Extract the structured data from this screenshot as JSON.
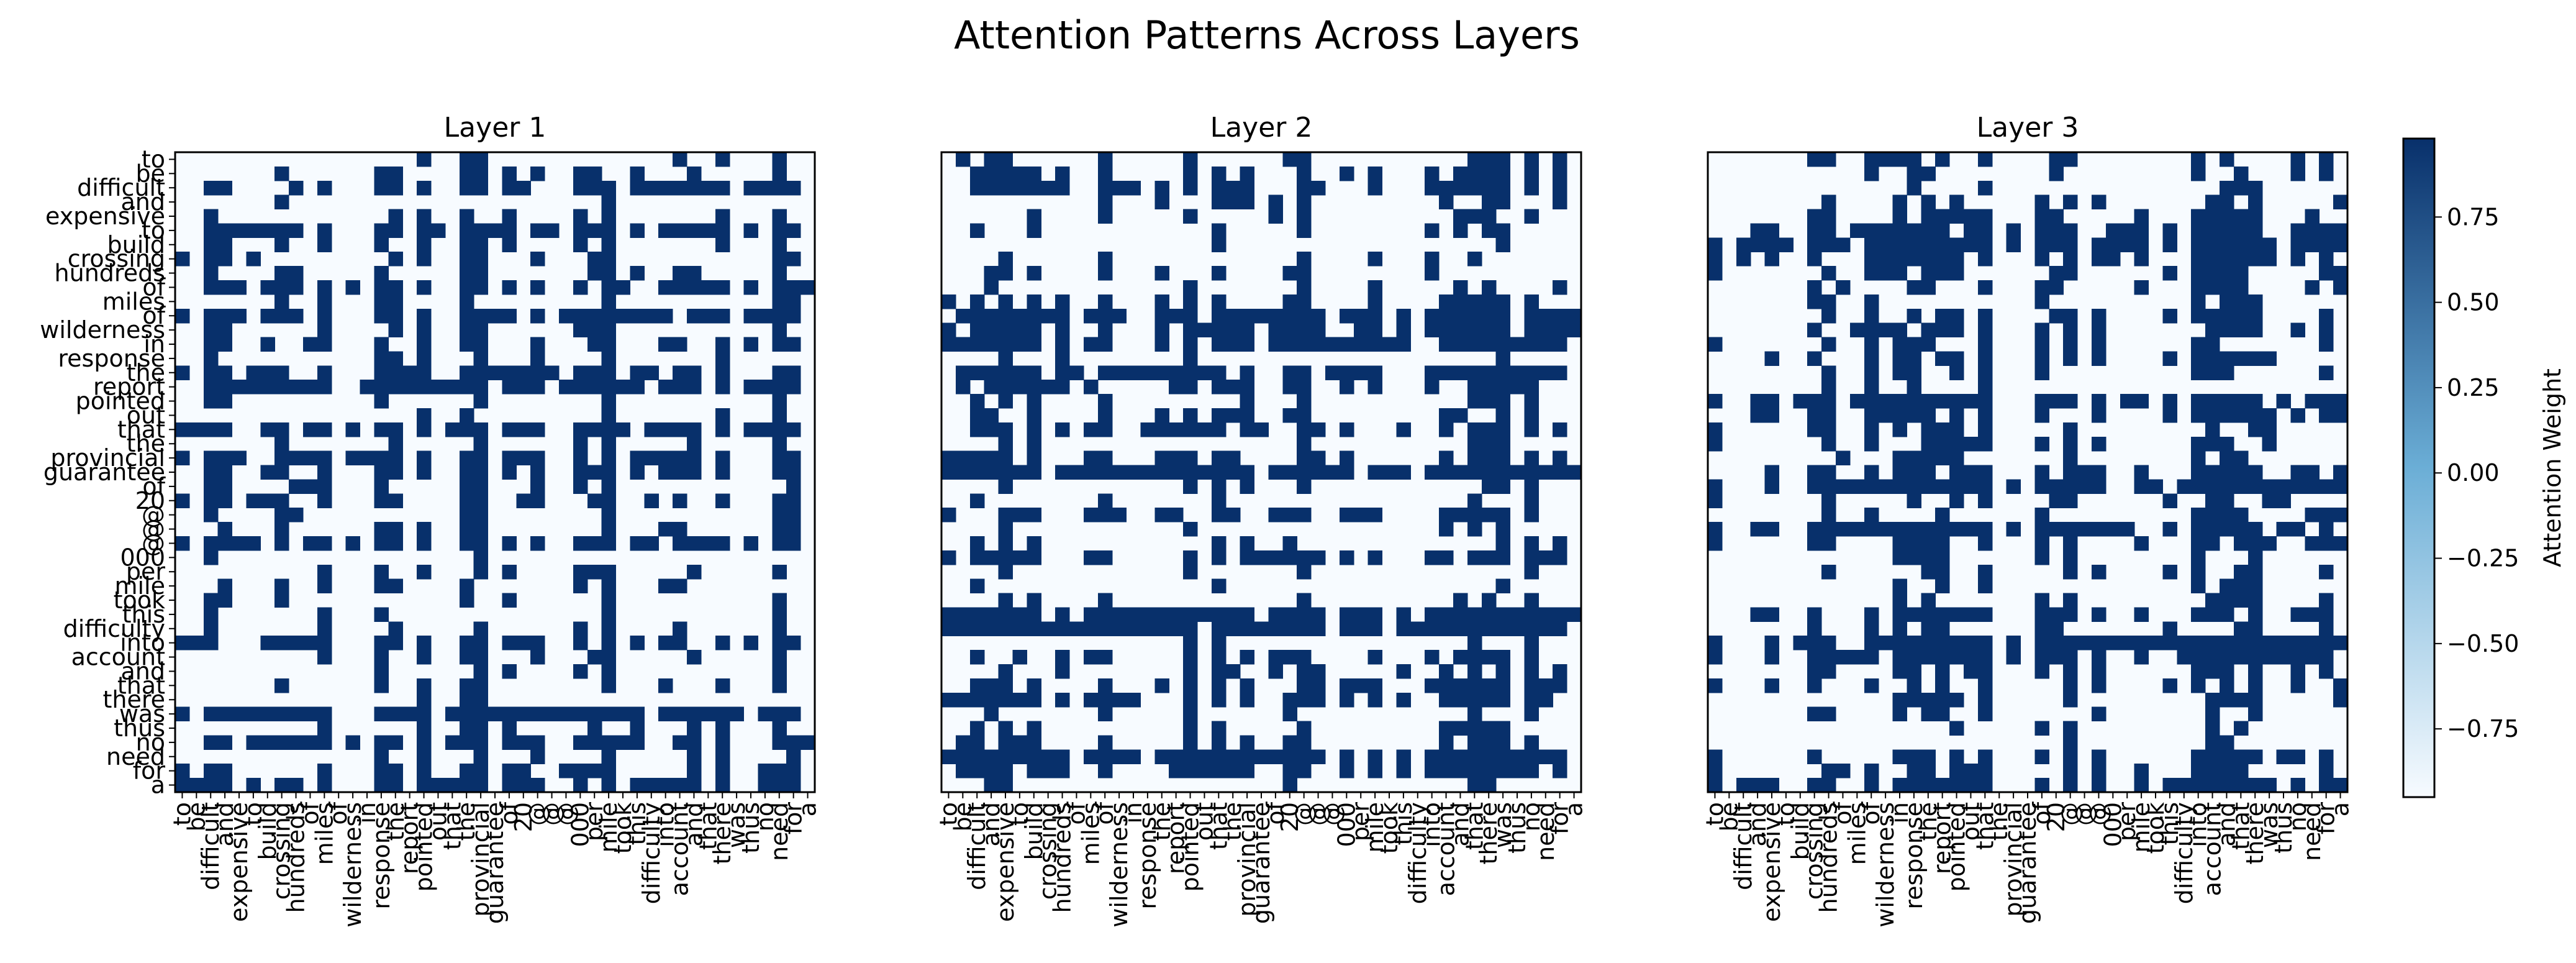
{
  "figure": {
    "title": "Attention Patterns Across Layers"
  },
  "colors": {
    "low": "#f7fbff",
    "high": "#08306b",
    "frame": "#000000"
  },
  "chart_data": {
    "type": "heatmap",
    "colormap": "Blues",
    "tokens": [
      "to",
      "be",
      "difficult",
      "and",
      "expensive",
      "to",
      "build",
      "crossing",
      "hundreds",
      "of",
      "miles",
      "of",
      "wilderness",
      "in",
      "response",
      "the",
      "report",
      "pointed",
      "out",
      "that",
      "the",
      "provincial",
      "guarantee",
      "of",
      "20",
      "@",
      "@",
      "@",
      "000",
      "per",
      "mile",
      "took",
      "this",
      "difficulty",
      "into",
      "account",
      "and",
      "that",
      "there",
      "was",
      "thus",
      "no",
      "need",
      "for",
      "a"
    ],
    "panels": [
      {
        "title": "Layer 1",
        "seed": 11
      },
      {
        "title": "Layer 2",
        "seed": 23
      },
      {
        "title": "Layer 3",
        "seed": 37
      }
    ],
    "colorbar": {
      "label": "Attention Weight",
      "range": [
        -0.95,
        0.98
      ],
      "ticks": [
        0.75,
        0.5,
        0.25,
        0.0,
        -0.25,
        -0.5,
        -0.75
      ],
      "tick_labels": [
        "0.75",
        "0.50",
        "0.25",
        "0.00",
        "−0.25",
        "−0.50",
        "−0.75"
      ]
    }
  }
}
